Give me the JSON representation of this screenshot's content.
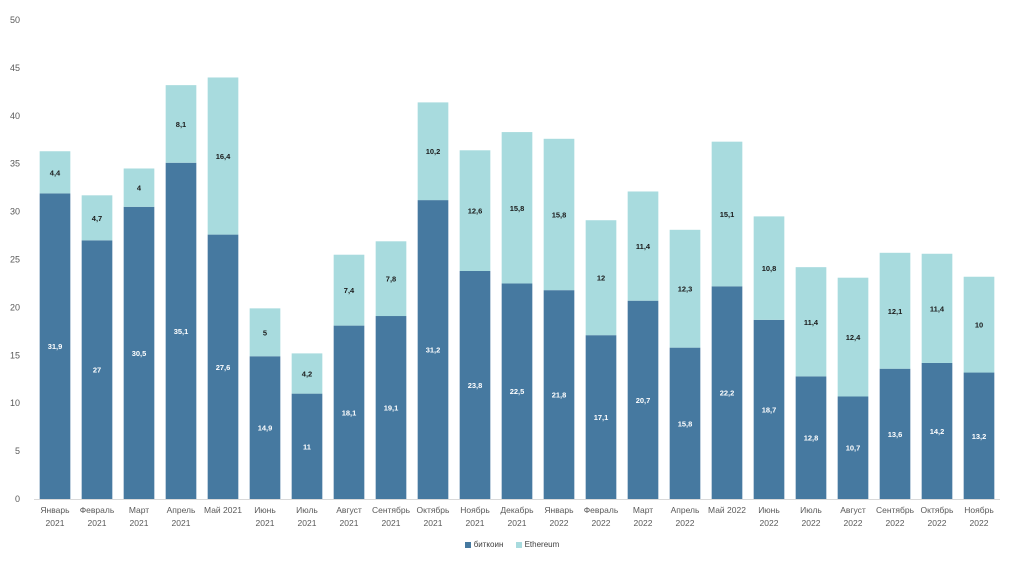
{
  "chart_data": {
    "type": "bar",
    "stacked": true,
    "categories": [
      [
        "Январь",
        "2021"
      ],
      [
        "Февраль",
        "2021"
      ],
      [
        "Март",
        "2021"
      ],
      [
        "Апрель",
        "2021"
      ],
      [
        "Май 2021",
        ""
      ],
      [
        "Июнь",
        "2021"
      ],
      [
        "Июль",
        "2021"
      ],
      [
        "Август",
        "2021"
      ],
      [
        "Сентябрь",
        "2021"
      ],
      [
        "Октябрь",
        "2021"
      ],
      [
        "Ноябрь",
        "2021"
      ],
      [
        "Декабрь",
        "2021"
      ],
      [
        "Январь",
        "2022"
      ],
      [
        "Февраль",
        "2022"
      ],
      [
        "Март",
        "2022"
      ],
      [
        "Апрель",
        "2022"
      ],
      [
        "Май 2022",
        ""
      ],
      [
        "Июнь",
        "2022"
      ],
      [
        "Июль",
        "2022"
      ],
      [
        "Август",
        "2022"
      ],
      [
        "Сентябрь",
        "2022"
      ],
      [
        "Октябрь",
        "2022"
      ],
      [
        "Ноябрь",
        "2022"
      ]
    ],
    "series": [
      {
        "name": "биткоин",
        "color": "#4679a0",
        "label_color": "#ffffff",
        "values": [
          31.9,
          27,
          30.5,
          35.1,
          27.6,
          14.9,
          11,
          18.1,
          19.1,
          31.2,
          23.8,
          22.5,
          21.8,
          17.1,
          20.7,
          15.8,
          22.2,
          18.7,
          12.8,
          10.7,
          13.6,
          14.2,
          13.2
        ]
      },
      {
        "name": "Ethereum",
        "color": "#a8dbde",
        "label_color": "#1a1a1a",
        "values": [
          4.4,
          4.7,
          4,
          8.1,
          16.4,
          5,
          4.2,
          7.4,
          7.8,
          10.2,
          12.6,
          15.8,
          15.8,
          12,
          11.4,
          12.3,
          15.1,
          10.8,
          11.4,
          12.4,
          12.1,
          11.4,
          10
        ]
      }
    ],
    "yticks": [
      0,
      5,
      10,
      15,
      20,
      25,
      30,
      35,
      40,
      45,
      50
    ],
    "ylim": [
      0,
      50
    ],
    "grid": false,
    "legend_position": "bottom",
    "title": "",
    "xlabel": "",
    "ylabel": ""
  }
}
